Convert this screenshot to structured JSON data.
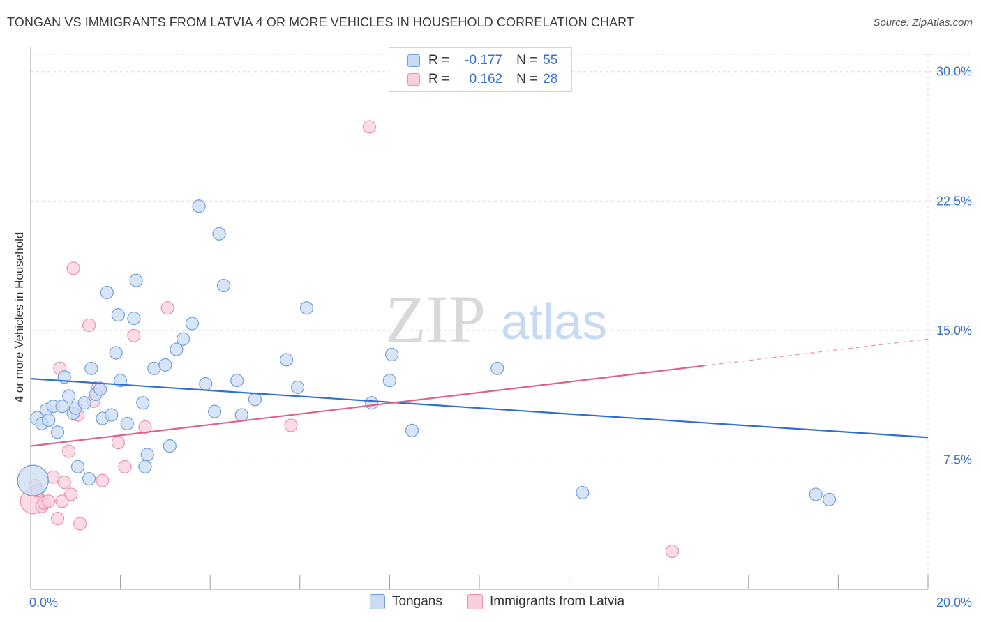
{
  "title": "TONGAN VS IMMIGRANTS FROM LATVIA 4 OR MORE VEHICLES IN HOUSEHOLD CORRELATION CHART",
  "source": "Source: ZipAtlas.com",
  "watermark": {
    "zip": "ZIP",
    "atlas": "atlas"
  },
  "legend": {
    "rows": [
      {
        "r_label": "R =",
        "r_value": "-0.177",
        "n_label": "N =",
        "n_value": "55"
      },
      {
        "r_label": "R =",
        "r_value": "0.162",
        "n_label": "N =",
        "n_value": "28"
      }
    ]
  },
  "bottom_legend": [
    "Tongans",
    "Immigrants from Latvia"
  ],
  "colors": {
    "tongans_fill": "#c9dcf4",
    "tongans_stroke": "#6f9fdb",
    "tongans_line": "#2f6fd0",
    "latvia_fill": "#f9cfdc",
    "latvia_stroke": "#ec8fab",
    "latvia_line": "#e0608c",
    "grid": "#dcdcdc",
    "tick_label": "#3a72c8"
  },
  "chart_data": {
    "type": "scatter",
    "title": "TONGAN VS IMMIGRANTS FROM LATVIA 4 OR MORE VEHICLES IN HOUSEHOLD CORRELATION CHART",
    "xlabel": "",
    "ylabel": "4 or more Vehicles in Household",
    "xlim": [
      0,
      20
    ],
    "ylim": [
      0,
      31
    ],
    "x_tick_labels": [
      "0.0%",
      "20.0%"
    ],
    "y_ticks": [
      7.5,
      15.0,
      22.5,
      30.0
    ],
    "y_tick_labels": [
      "7.5%",
      "15.0%",
      "22.5%",
      "30.0%"
    ],
    "grid": true,
    "legend_position": "top-center",
    "series": [
      {
        "name": "Tongans",
        "trend": {
          "x": [
            0.0,
            20.0
          ],
          "y": [
            12.2,
            8.8
          ],
          "dashed_from": null
        },
        "points": [
          [
            0.05,
            6.3,
            22
          ],
          [
            0.15,
            9.9,
            10
          ],
          [
            0.25,
            9.6,
            9
          ],
          [
            0.35,
            10.4,
            9
          ],
          [
            0.4,
            9.8,
            9
          ],
          [
            0.5,
            10.6,
            9
          ],
          [
            0.6,
            9.1,
            9
          ],
          [
            0.7,
            10.6,
            9
          ],
          [
            0.75,
            12.3,
            9
          ],
          [
            0.85,
            11.2,
            9
          ],
          [
            0.95,
            10.2,
            9
          ],
          [
            1.0,
            10.5,
            9
          ],
          [
            1.05,
            7.1,
            9
          ],
          [
            1.2,
            10.8,
            9
          ],
          [
            1.3,
            6.4,
            9
          ],
          [
            1.35,
            12.8,
            9
          ],
          [
            1.45,
            11.3,
            9
          ],
          [
            1.55,
            11.6,
            9
          ],
          [
            1.6,
            9.9,
            9
          ],
          [
            1.7,
            17.2,
            9
          ],
          [
            1.8,
            10.1,
            9
          ],
          [
            1.9,
            13.7,
            9
          ],
          [
            1.95,
            15.9,
            9
          ],
          [
            2.0,
            12.1,
            9
          ],
          [
            2.15,
            9.6,
            9
          ],
          [
            2.3,
            15.7,
            9
          ],
          [
            2.35,
            17.9,
            9
          ],
          [
            2.5,
            10.8,
            9
          ],
          [
            2.55,
            7.1,
            9
          ],
          [
            2.6,
            7.8,
            9
          ],
          [
            2.75,
            12.8,
            9
          ],
          [
            3.0,
            13.0,
            9
          ],
          [
            3.1,
            8.3,
            9
          ],
          [
            3.25,
            13.9,
            9
          ],
          [
            3.4,
            14.5,
            9
          ],
          [
            3.6,
            15.4,
            9
          ],
          [
            3.75,
            22.2,
            9
          ],
          [
            3.9,
            11.9,
            9
          ],
          [
            4.1,
            10.3,
            9
          ],
          [
            4.2,
            20.6,
            9
          ],
          [
            4.3,
            17.6,
            9
          ],
          [
            4.6,
            12.1,
            9
          ],
          [
            4.7,
            10.1,
            9
          ],
          [
            5.0,
            11.0,
            9
          ],
          [
            5.7,
            13.3,
            9
          ],
          [
            5.95,
            11.7,
            9
          ],
          [
            6.15,
            16.3,
            9
          ],
          [
            7.6,
            10.8,
            9
          ],
          [
            8.0,
            12.1,
            9
          ],
          [
            8.05,
            13.6,
            9
          ],
          [
            8.5,
            9.2,
            9
          ],
          [
            10.4,
            12.8,
            9
          ],
          [
            12.3,
            5.6,
            9
          ],
          [
            17.5,
            5.5,
            9
          ],
          [
            17.8,
            5.2,
            9
          ]
        ]
      },
      {
        "name": "Immigrants from Latvia",
        "trend": {
          "x": [
            0.0,
            20.0
          ],
          "y": [
            8.3,
            14.5
          ],
          "dashed_from": 15.0
        },
        "points": [
          [
            0.05,
            5.1,
            18
          ],
          [
            0.1,
            6.0,
            9
          ],
          [
            0.15,
            5.7,
            9
          ],
          [
            0.25,
            4.8,
            9
          ],
          [
            0.3,
            5.0,
            9
          ],
          [
            0.4,
            5.1,
            9
          ],
          [
            0.5,
            6.5,
            9
          ],
          [
            0.6,
            4.1,
            9
          ],
          [
            0.65,
            12.8,
            9
          ],
          [
            0.7,
            5.1,
            9
          ],
          [
            0.75,
            6.2,
            9
          ],
          [
            0.85,
            8.0,
            9
          ],
          [
            0.9,
            5.5,
            9
          ],
          [
            0.95,
            18.6,
            9
          ],
          [
            1.05,
            10.1,
            9
          ],
          [
            1.1,
            3.8,
            9
          ],
          [
            1.3,
            15.3,
            9
          ],
          [
            1.4,
            10.9,
            9
          ],
          [
            1.5,
            11.7,
            9
          ],
          [
            1.6,
            6.3,
            9
          ],
          [
            1.95,
            8.5,
            9
          ],
          [
            2.1,
            7.1,
            9
          ],
          [
            2.3,
            14.7,
            9
          ],
          [
            2.55,
            9.4,
            9
          ],
          [
            3.05,
            16.3,
            9
          ],
          [
            5.8,
            9.5,
            9
          ],
          [
            7.55,
            26.8,
            9
          ],
          [
            14.3,
            2.2,
            9
          ]
        ]
      }
    ]
  }
}
